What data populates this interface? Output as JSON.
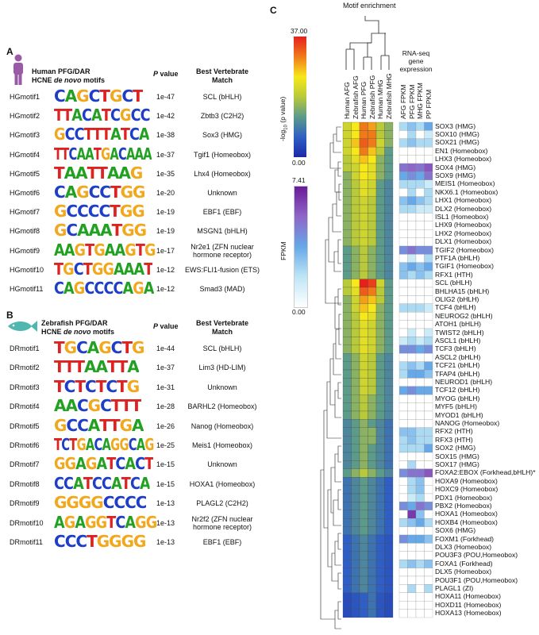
{
  "panelA": {
    "letter": "A",
    "title_line1": "Human PFG/DAR",
    "title_line2_pre": "HCNE ",
    "title_line2_em": "de novo",
    "title_line2_post": " motifs",
    "pvalue_header": "P value",
    "pvalue_header_p": "P",
    "pvalue_header_rest": " value",
    "match_header_line1": "Best Vertebrate",
    "match_header_line2": "Match",
    "rows": [
      {
        "name": "HGmotif1",
        "seq": "CAGCTGCT",
        "p": "1e-47",
        "match": "SCL (bHLH)"
      },
      {
        "name": "HGmotif2",
        "seq": "TTACATCGCC",
        "p": "1e-42",
        "match": "Zbtb3 (C2H2)"
      },
      {
        "name": "HGmotif3",
        "seq": "GCCTTTATCA",
        "p": "1e-38",
        "match": "Sox3 (HMG)"
      },
      {
        "name": "HGmotif4",
        "seq": "TTCAATGACAAA",
        "p": "1e-37",
        "match": "Tgif1 (Homeobox)"
      },
      {
        "name": "HGmotif5",
        "seq": "TAATTAAG",
        "p": "1e-35",
        "match": "Lhx4 (Homeobox)"
      },
      {
        "name": "HGmotif6",
        "seq": "CAGCCTGG",
        "p": "1e-20",
        "match": "Unknown"
      },
      {
        "name": "HGmotif7",
        "seq": "GCCCCTGG",
        "p": "1e-19",
        "match": "EBF1 (EBF)"
      },
      {
        "name": "HGmotif8",
        "seq": "GCAAATGG",
        "p": "1e-19",
        "match": "MSGN1 (bHLH)"
      },
      {
        "name": "HGmotif9",
        "seq": "AAGTGAAGTG",
        "p": "1e-17",
        "match": "Nr2e1 (ZFN nuclear hormone receptor)",
        "match1": "Nr2e1 (ZFN nuclear",
        "match2": "hormone receptor)"
      },
      {
        "name": "HGmotif10",
        "seq": "TGCTGGAAAT",
        "p": "1e-12",
        "match": "EWS:FLI1-fusion (ETS)"
      },
      {
        "name": "HGmotif11",
        "seq": "CAGCCCCAGA",
        "p": "1e-12",
        "match": "Smad3 (MAD)"
      }
    ]
  },
  "panelB": {
    "letter": "B",
    "title_line1": "Zebrafish PFG/DAR",
    "title_line2_pre": "HCNE ",
    "title_line2_em": "de novo",
    "title_line2_post": " motifs",
    "pvalue_header_p": "P",
    "pvalue_header_rest": " value",
    "match_header_line1": "Best Vertebrate",
    "match_header_line2": "Match",
    "rows": [
      {
        "name": "DRmotif1",
        "seq": "TGCAGCTG",
        "p": "1e-44",
        "match": "SCL (bHLH)"
      },
      {
        "name": "DRmotif2",
        "seq": "TTTAATTA",
        "p": "1e-37",
        "match": "Lim3 (HD-LIM)"
      },
      {
        "name": "DRmotif3",
        "seq": "TCTCTCTG",
        "p": "1e-31",
        "match": "Unknown"
      },
      {
        "name": "DRmotif4",
        "seq": "AACGCTTT",
        "p": "1e-28",
        "match": "BARHL2 (Homeobox)"
      },
      {
        "name": "DRmotif5",
        "seq": "GCCATTGA",
        "p": "1e-26",
        "match": "Nanog (Homeobox)"
      },
      {
        "name": "DRmotif6",
        "seq": "TCTGACAGGCAG",
        "p": "1e-25",
        "match": "Meis1 (Homeobox)"
      },
      {
        "name": "DRmotif7",
        "seq": "GGAGATCACT",
        "p": "1e-15",
        "match": "Unknown"
      },
      {
        "name": "DRmotif8",
        "seq": "CCATCCATCA",
        "p": "1e-15",
        "match": "HOXA1 (Homeobox)"
      },
      {
        "name": "DRmotif9",
        "seq": "GGGGCCCC",
        "p": "1e-13",
        "match": "PLAGL2 (C2H2)"
      },
      {
        "name": "DRmotif10",
        "seq": "AGAGGTCAGG",
        "p": "1e-13",
        "match": "Nr2f2 (ZFN nuclear hormone receptor)",
        "match1": "Nr2f2 (ZFN nuclear",
        "match2": "hormone receptor)"
      },
      {
        "name": "DRmotif11",
        "seq": "CCCTGGGG",
        "p": "1e-13",
        "match": "EBF1 (EBF)"
      }
    ]
  },
  "panelC": {
    "letter": "C",
    "dendro_title": "Motif enrichment",
    "rnaseq_title_1": "RNA-seq",
    "rnaseq_title_2": "gene",
    "rnaseq_title_3": "expression",
    "scale1_max": "37.00",
    "scale1_min": "0.00",
    "scale1_label": "-log10 (p value)",
    "scale1_label_a": "-log",
    "scale1_label_sub": "10",
    "scale1_label_b": " (p value)",
    "scale2_max": "7.41",
    "scale2_min": "0.00",
    "scale2_label": "FPKM",
    "columns": [
      "Human AFG",
      "Zebrafish AFG",
      "Human PFG",
      "Zebrafish PFG",
      "Human MHG",
      "Zebrafish MHG"
    ],
    "rnaseq_columns": [
      "AFG FPKM",
      "PFG FPKM",
      "MHG FPKM",
      "PP FPKM"
    ],
    "rows": [
      {
        "label": "SOX3 (HMG)",
        "e": [
          0.6,
          0.7,
          0.85,
          0.8,
          0.55,
          0.5
        ],
        "f": [
          0.3,
          0.4,
          0.3,
          0.5
        ]
      },
      {
        "label": "SOX10 (HMG)",
        "e": [
          0.6,
          0.7,
          0.85,
          0.85,
          0.55,
          0.5
        ],
        "f": [
          0.0,
          0.3,
          0.0,
          0.2
        ]
      },
      {
        "label": "SOX21 (HMG)",
        "e": [
          0.6,
          0.75,
          0.9,
          0.85,
          0.6,
          0.5
        ],
        "f": [
          0.3,
          0.4,
          0.3,
          0.3
        ]
      },
      {
        "label": "EN1 (Homeobox)",
        "e": [
          0.6,
          0.7,
          0.85,
          0.75,
          0.55,
          0.45
        ],
        "f": [
          0.0,
          0.0,
          0.0,
          0.0
        ]
      },
      {
        "label": "LHX3 (Homeobox)",
        "e": [
          0.55,
          0.65,
          0.75,
          0.7,
          0.5,
          0.45
        ],
        "f": [
          0.0,
          0.0,
          0.0,
          0.0
        ]
      },
      {
        "label": "SOX4 (HMG)",
        "e": [
          0.55,
          0.6,
          0.7,
          0.65,
          0.5,
          0.45
        ],
        "f": [
          0.7,
          0.75,
          0.7,
          0.8
        ]
      },
      {
        "label": "SOX9 (HMG)",
        "e": [
          0.5,
          0.6,
          0.7,
          0.65,
          0.5,
          0.45
        ],
        "f": [
          0.5,
          0.6,
          0.5,
          0.7
        ]
      },
      {
        "label": "MEIS1 (Homeobox)",
        "e": [
          0.5,
          0.55,
          0.65,
          0.6,
          0.45,
          0.4
        ],
        "f": [
          0.3,
          0.3,
          0.3,
          0.2
        ]
      },
      {
        "label": "NKX6.1 (Homeobox)",
        "e": [
          0.5,
          0.55,
          0.65,
          0.6,
          0.45,
          0.4
        ],
        "f": [
          0.0,
          0.3,
          0.0,
          0.3
        ]
      },
      {
        "label": "LHX1 (Homeobox)",
        "e": [
          0.5,
          0.55,
          0.6,
          0.55,
          0.45,
          0.4
        ],
        "f": [
          0.4,
          0.5,
          0.4,
          0.3
        ]
      },
      {
        "label": "DLX2 (Homeobox)",
        "e": [
          0.5,
          0.55,
          0.6,
          0.55,
          0.45,
          0.4
        ],
        "f": [
          0.3,
          0.3,
          0.2,
          0.2
        ]
      },
      {
        "label": "ISL1 (Homeobox)",
        "e": [
          0.5,
          0.55,
          0.6,
          0.55,
          0.45,
          0.4
        ],
        "f": [
          0.0,
          0.0,
          0.0,
          0.0
        ]
      },
      {
        "label": "LHX9 (Homeobox)",
        "e": [
          0.5,
          0.55,
          0.6,
          0.55,
          0.45,
          0.4
        ],
        "f": [
          0.0,
          0.0,
          0.0,
          0.0
        ]
      },
      {
        "label": "LHX2 (Homeobox)",
        "e": [
          0.5,
          0.55,
          0.6,
          0.55,
          0.45,
          0.4
        ],
        "f": [
          0.0,
          0.0,
          0.0,
          0.0
        ]
      },
      {
        "label": "DLX1 (Homeobox)",
        "e": [
          0.5,
          0.55,
          0.6,
          0.55,
          0.45,
          0.4
        ],
        "f": [
          0.0,
          0.0,
          0.0,
          0.0
        ]
      },
      {
        "label": "TGIF2 (Homeobox)",
        "e": [
          0.45,
          0.5,
          0.55,
          0.5,
          0.45,
          0.4
        ],
        "f": [
          0.6,
          0.7,
          0.6,
          0.6
        ]
      },
      {
        "label": "PTF1A (bHLH)",
        "e": [
          0.45,
          0.5,
          0.55,
          0.5,
          0.45,
          0.4
        ],
        "f": [
          0.0,
          0.2,
          0.0,
          0.3
        ]
      },
      {
        "label": "TGIF1 (Homeobox)",
        "e": [
          0.45,
          0.5,
          0.55,
          0.5,
          0.45,
          0.4
        ],
        "f": [
          0.4,
          0.5,
          0.4,
          0.5
        ]
      },
      {
        "label": "RFX1 (HTH)",
        "e": [
          0.45,
          0.5,
          0.55,
          0.5,
          0.45,
          0.4
        ],
        "f": [
          0.4,
          0.3,
          0.4,
          0.3
        ]
      },
      {
        "label": "SCL (bHLH)",
        "e": [
          0.55,
          0.7,
          1.0,
          0.95,
          0.6,
          0.45
        ],
        "f": [
          0.0,
          0.0,
          0.0,
          0.0
        ]
      },
      {
        "label": "BHLHA15 (bHLH)",
        "e": [
          0.55,
          0.65,
          0.9,
          0.85,
          0.55,
          0.45
        ],
        "f": [
          0.0,
          0.0,
          0.0,
          0.0
        ]
      },
      {
        "label": "OLIG2 (bHLH)",
        "e": [
          0.5,
          0.6,
          0.8,
          0.75,
          0.55,
          0.45
        ],
        "f": [
          0.0,
          0.0,
          0.0,
          0.0
        ]
      },
      {
        "label": "TCF4 (bHLH)",
        "e": [
          0.5,
          0.6,
          0.75,
          0.7,
          0.5,
          0.45
        ],
        "f": [
          0.3,
          0.3,
          0.3,
          0.2
        ]
      },
      {
        "label": "NEUROG2 (bHLH)",
        "e": [
          0.5,
          0.55,
          0.7,
          0.65,
          0.5,
          0.45
        ],
        "f": [
          0.0,
          0.0,
          0.0,
          0.0
        ]
      },
      {
        "label": "ATOH1 (bHLH)",
        "e": [
          0.5,
          0.55,
          0.65,
          0.6,
          0.5,
          0.45
        ],
        "f": [
          0.0,
          0.0,
          0.0,
          0.0
        ]
      },
      {
        "label": "TWIST2 (bHLH)",
        "e": [
          0.5,
          0.55,
          0.65,
          0.6,
          0.5,
          0.45
        ],
        "f": [
          0.0,
          0.2,
          0.0,
          0.2
        ]
      },
      {
        "label": "ASCL1 (bHLH)",
        "e": [
          0.5,
          0.55,
          0.65,
          0.6,
          0.5,
          0.45
        ],
        "f": [
          0.2,
          0.3,
          0.2,
          0.3
        ]
      },
      {
        "label": "TCF3 (bHLH)",
        "e": [
          0.5,
          0.55,
          0.65,
          0.6,
          0.5,
          0.45
        ],
        "f": [
          0.6,
          0.6,
          0.5,
          0.6
        ]
      },
      {
        "label": "ASCL2 (bHLH)",
        "e": [
          0.45,
          0.5,
          0.6,
          0.55,
          0.45,
          0.4
        ],
        "f": [
          0.0,
          0.0,
          0.0,
          0.0
        ]
      },
      {
        "label": "TCF21 (bHLH)",
        "e": [
          0.45,
          0.5,
          0.6,
          0.55,
          0.45,
          0.4
        ],
        "f": [
          0.3,
          0.4,
          0.3,
          0.5
        ]
      },
      {
        "label": "TFAP4 (bHLH)",
        "e": [
          0.45,
          0.5,
          0.6,
          0.55,
          0.45,
          0.4
        ],
        "f": [
          0.3,
          0.5,
          0.5,
          0.4
        ]
      },
      {
        "label": "NEUROD1 (bHLH)",
        "e": [
          0.45,
          0.5,
          0.6,
          0.55,
          0.45,
          0.4
        ],
        "f": [
          0.0,
          0.0,
          0.0,
          0.0
        ]
      },
      {
        "label": "TCF12 (bHLH)",
        "e": [
          0.45,
          0.5,
          0.6,
          0.55,
          0.45,
          0.4
        ],
        "f": [
          0.5,
          0.6,
          0.5,
          0.5
        ]
      },
      {
        "label": "MYOG (bHLH)",
        "e": [
          0.45,
          0.5,
          0.55,
          0.5,
          0.45,
          0.4
        ],
        "f": [
          0.0,
          0.0,
          0.0,
          0.0
        ]
      },
      {
        "label": "MYF5 (bHLH)",
        "e": [
          0.45,
          0.5,
          0.55,
          0.5,
          0.45,
          0.4
        ],
        "f": [
          0.0,
          0.0,
          0.0,
          0.0
        ]
      },
      {
        "label": "MYOD1 (bHLH)",
        "e": [
          0.45,
          0.5,
          0.55,
          0.5,
          0.45,
          0.4
        ],
        "f": [
          0.0,
          0.0,
          0.0,
          0.0
        ]
      },
      {
        "label": "NANOG (Homeobox)",
        "e": [
          0.4,
          0.45,
          0.5,
          0.45,
          0.4,
          0.35
        ],
        "f": [
          0.0,
          0.0,
          0.0,
          0.0
        ]
      },
      {
        "label": "RFX2 (HTH)",
        "e": [
          0.4,
          0.45,
          0.5,
          0.5,
          0.4,
          0.35
        ],
        "f": [
          0.4,
          0.4,
          0.3,
          0.3
        ]
      },
      {
        "label": "RFX3 (HTH)",
        "e": [
          0.4,
          0.45,
          0.5,
          0.5,
          0.4,
          0.35
        ],
        "f": [
          0.3,
          0.4,
          0.3,
          0.3
        ]
      },
      {
        "label": "SOX2 (HMG)",
        "e": [
          0.4,
          0.45,
          0.5,
          0.45,
          0.4,
          0.35
        ],
        "f": [
          0.3,
          0.3,
          0.3,
          0.5
        ]
      },
      {
        "label": "SOX15 (HMG)",
        "e": [
          0.4,
          0.45,
          0.5,
          0.45,
          0.4,
          0.35
        ],
        "f": [
          0.0,
          0.0,
          0.0,
          0.0
        ]
      },
      {
        "label": "SOX17 (HMG)",
        "e": [
          0.4,
          0.45,
          0.5,
          0.45,
          0.4,
          0.35
        ],
        "f": [
          0.0,
          0.3,
          0.0,
          0.0
        ]
      },
      {
        "label": "FOXA2:EBOX (Forkhead,bHLH)*",
        "e": [
          0.45,
          0.5,
          0.55,
          0.5,
          0.45,
          0.4
        ],
        "f": [
          0.6,
          0.7,
          0.7,
          0.8
        ]
      },
      {
        "label": "HOXA9 (Homeobox)",
        "e": [
          0.35,
          0.4,
          0.45,
          0.4,
          0.35,
          0.3
        ],
        "f": [
          0.0,
          0.3,
          0.4,
          0.0
        ]
      },
      {
        "label": "HOXC9 (Homeobox)",
        "e": [
          0.35,
          0.4,
          0.45,
          0.4,
          0.35,
          0.3
        ],
        "f": [
          0.0,
          0.3,
          0.4,
          0.0
        ]
      },
      {
        "label": "PDX1 (Homeobox)",
        "e": [
          0.35,
          0.4,
          0.45,
          0.4,
          0.35,
          0.3
        ],
        "f": [
          0.0,
          0.2,
          0.3,
          0.0
        ]
      },
      {
        "label": "PBX2 (Homeobox)",
        "e": [
          0.35,
          0.4,
          0.45,
          0.4,
          0.35,
          0.3
        ],
        "f": [
          0.6,
          0.5,
          0.7,
          0.6
        ]
      },
      {
        "label": "HOXA1 (Homeobox)",
        "e": [
          0.35,
          0.4,
          0.45,
          0.4,
          0.35,
          0.3
        ],
        "f": [
          0.0,
          0.9,
          0.4,
          0.0
        ]
      },
      {
        "label": "HOXB4 (Homeobox)",
        "e": [
          0.35,
          0.4,
          0.45,
          0.4,
          0.35,
          0.3
        ],
        "f": [
          0.3,
          0.4,
          0.5,
          0.3
        ]
      },
      {
        "label": "SOX6 (HMG)",
        "e": [
          0.35,
          0.4,
          0.45,
          0.4,
          0.35,
          0.3
        ],
        "f": [
          0.0,
          0.0,
          0.0,
          0.0
        ]
      },
      {
        "label": "FOXM1 (Forkhead)",
        "e": [
          0.3,
          0.35,
          0.4,
          0.35,
          0.3,
          0.25
        ],
        "f": [
          0.6,
          0.5,
          0.5,
          0.4
        ]
      },
      {
        "label": "DLX3 (Homeobox)",
        "e": [
          0.3,
          0.35,
          0.4,
          0.35,
          0.3,
          0.25
        ],
        "f": [
          0.0,
          0.0,
          0.0,
          0.0
        ]
      },
      {
        "label": "POU3F3 (POU,Homeobox)",
        "e": [
          0.3,
          0.35,
          0.4,
          0.35,
          0.3,
          0.25
        ],
        "f": [
          0.0,
          0.0,
          0.0,
          0.0
        ]
      },
      {
        "label": "FOXA1 (Forkhead)",
        "e": [
          0.3,
          0.35,
          0.4,
          0.35,
          0.3,
          0.25
        ],
        "f": [
          0.3,
          0.4,
          0.3,
          0.4
        ]
      },
      {
        "label": "DLX5 (Homeobox)",
        "e": [
          0.3,
          0.35,
          0.4,
          0.35,
          0.3,
          0.25
        ],
        "f": [
          0.0,
          0.0,
          0.0,
          0.0
        ]
      },
      {
        "label": "POU3F1 (POU,Homeobox)",
        "e": [
          0.3,
          0.35,
          0.4,
          0.35,
          0.3,
          0.25
        ],
        "f": [
          0.0,
          0.0,
          0.0,
          0.0
        ]
      },
      {
        "label": "PLAGL1 (ZI)",
        "e": [
          0.3,
          0.35,
          0.4,
          0.35,
          0.3,
          0.25
        ],
        "f": [
          0.0,
          0.3,
          0.0,
          0.3
        ]
      },
      {
        "label": "HOXA11 (Homeobox)",
        "e": [
          0.2,
          0.25,
          0.3,
          0.35,
          0.25,
          0.2
        ],
        "f": [
          0.0,
          0.0,
          0.0,
          0.0
        ]
      },
      {
        "label": "HOXD11 (Homeobox)",
        "e": [
          0.2,
          0.25,
          0.3,
          0.35,
          0.25,
          0.2
        ],
        "f": [
          0.0,
          0.0,
          0.0,
          0.0
        ]
      },
      {
        "label": "HOXA13 (Homeobox)",
        "e": [
          0.2,
          0.25,
          0.3,
          0.35,
          0.25,
          0.2
        ],
        "f": [
          0.0,
          0.0,
          0.0,
          0.0
        ]
      }
    ]
  },
  "colors": {
    "A": "#22a022",
    "C": "#1e3ec8",
    "G": "#f2a81c",
    "T": "#dd2222",
    "human_icon": "#9a5ba6",
    "fish_icon": "#4fb7b0"
  }
}
